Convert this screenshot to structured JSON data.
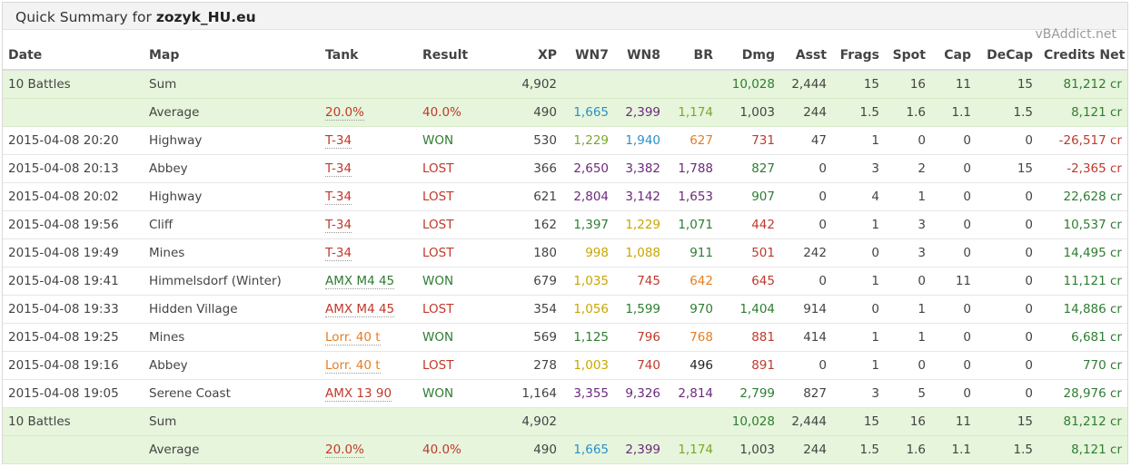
{
  "header": {
    "prefix": "Quick Summary for ",
    "player": "zozyk_HU.eu",
    "brand": "vBAddict.net"
  },
  "colors": {
    "red": "#c0392b",
    "orange": "#e67e22",
    "yellow": "#c9a600",
    "green": "#2e9a2e",
    "lightgreen": "#7aa82a",
    "blue": "#2a8fc9",
    "purple": "#6b2a7a",
    "darkgreen": "#2e7d32",
    "black": "#222222",
    "gray": "#444444",
    "sum_bg": "#e6f5dc"
  },
  "columns": [
    "Date",
    "Map",
    "Tank",
    "Result",
    "XP",
    "WN7",
    "WN8",
    "BR",
    "Dmg",
    "Asst",
    "Frags",
    "Spot",
    "Cap",
    "DeCap",
    "Credits Net"
  ],
  "top_summary": [
    {
      "date": "10 Battles",
      "map": "Sum",
      "tank": "",
      "result": "",
      "xp": "4,902",
      "wn7": "",
      "wn8": "",
      "br": "",
      "dmg": "10,028",
      "asst": "2,444",
      "frags": "15",
      "spot": "16",
      "cap": "11",
      "decap": "15",
      "credits": "81,212 cr"
    },
    {
      "date": "",
      "map": "Average",
      "tank": "20.0%",
      "result": "40.0%",
      "xp": "490",
      "wn7": "1,665",
      "wn8": "2,399",
      "br": "1,174",
      "dmg": "1,003",
      "asst": "244",
      "frags": "1.5",
      "spot": "1.6",
      "cap": "1.1",
      "decap": "1.5",
      "credits": "8,121 cr"
    }
  ],
  "battles": [
    {
      "date": "2015-04-08 20:20",
      "map": "Highway",
      "tank": "T-34",
      "result": "WON",
      "xp": "530",
      "wn7": "1,229",
      "wn8": "1,940",
      "br": "627",
      "dmg": "731",
      "asst": "47",
      "frags": "1",
      "spot": "0",
      "cap": "0",
      "decap": "0",
      "credits": "-26,517 cr"
    },
    {
      "date": "2015-04-08 20:13",
      "map": "Abbey",
      "tank": "T-34",
      "result": "LOST",
      "xp": "366",
      "wn7": "2,650",
      "wn8": "3,382",
      "br": "1,788",
      "dmg": "827",
      "asst": "0",
      "frags": "3",
      "spot": "2",
      "cap": "0",
      "decap": "15",
      "credits": "-2,365 cr"
    },
    {
      "date": "2015-04-08 20:02",
      "map": "Highway",
      "tank": "T-34",
      "result": "LOST",
      "xp": "621",
      "wn7": "2,804",
      "wn8": "3,142",
      "br": "1,653",
      "dmg": "907",
      "asst": "0",
      "frags": "4",
      "spot": "1",
      "cap": "0",
      "decap": "0",
      "credits": "22,628 cr"
    },
    {
      "date": "2015-04-08 19:56",
      "map": "Cliff",
      "tank": "T-34",
      "result": "LOST",
      "xp": "162",
      "wn7": "1,397",
      "wn8": "1,229",
      "br": "1,071",
      "dmg": "442",
      "asst": "0",
      "frags": "1",
      "spot": "3",
      "cap": "0",
      "decap": "0",
      "credits": "10,537 cr"
    },
    {
      "date": "2015-04-08 19:49",
      "map": "Mines",
      "tank": "T-34",
      "result": "LOST",
      "xp": "180",
      "wn7": "998",
      "wn8": "1,088",
      "br": "911",
      "dmg": "501",
      "asst": "242",
      "frags": "0",
      "spot": "3",
      "cap": "0",
      "decap": "0",
      "credits": "14,495 cr"
    },
    {
      "date": "2015-04-08 19:41",
      "map": "Himmelsdorf (Winter)",
      "tank": "AMX M4 45",
      "result": "WON",
      "xp": "679",
      "wn7": "1,035",
      "wn8": "745",
      "br": "642",
      "dmg": "645",
      "asst": "0",
      "frags": "1",
      "spot": "0",
      "cap": "11",
      "decap": "0",
      "credits": "11,121 cr"
    },
    {
      "date": "2015-04-08 19:33",
      "map": "Hidden Village",
      "tank": "AMX M4 45",
      "result": "LOST",
      "xp": "354",
      "wn7": "1,056",
      "wn8": "1,599",
      "br": "970",
      "dmg": "1,404",
      "asst": "914",
      "frags": "0",
      "spot": "1",
      "cap": "0",
      "decap": "0",
      "credits": "14,886 cr"
    },
    {
      "date": "2015-04-08 19:25",
      "map": "Mines",
      "tank": "Lorr. 40 t",
      "result": "WON",
      "xp": "569",
      "wn7": "1,125",
      "wn8": "796",
      "br": "768",
      "dmg": "881",
      "asst": "414",
      "frags": "1",
      "spot": "1",
      "cap": "0",
      "decap": "0",
      "credits": "6,681 cr"
    },
    {
      "date": "2015-04-08 19:16",
      "map": "Abbey",
      "tank": "Lorr. 40 t",
      "result": "LOST",
      "xp": "278",
      "wn7": "1,003",
      "wn8": "740",
      "br": "496",
      "dmg": "891",
      "asst": "0",
      "frags": "1",
      "spot": "0",
      "cap": "0",
      "decap": "0",
      "credits": "770 cr"
    },
    {
      "date": "2015-04-08 19:05",
      "map": "Serene Coast",
      "tank": "AMX 13 90",
      "result": "WON",
      "xp": "1,164",
      "wn7": "3,355",
      "wn8": "9,326",
      "br": "2,814",
      "dmg": "2,799",
      "asst": "827",
      "frags": "3",
      "spot": "5",
      "cap": "0",
      "decap": "0",
      "credits": "28,976 cr"
    }
  ],
  "bottom_summary": [
    {
      "date": "10 Battles",
      "map": "Sum",
      "tank": "",
      "result": "",
      "xp": "4,902",
      "wn7": "",
      "wn8": "",
      "br": "",
      "dmg": "10,028",
      "asst": "2,444",
      "frags": "15",
      "spot": "16",
      "cap": "11",
      "decap": "15",
      "credits": "81,212 cr"
    },
    {
      "date": "",
      "map": "Average",
      "tank": "20.0%",
      "result": "40.0%",
      "xp": "490",
      "wn7": "1,665",
      "wn8": "2,399",
      "br": "1,174",
      "dmg": "1,003",
      "asst": "244",
      "frags": "1.5",
      "spot": "1.6",
      "cap": "1.1",
      "decap": "1.5",
      "credits": "8,121 cr"
    }
  ],
  "cell_colors": {
    "top_summary": [
      {
        "dmg": "darkgreen",
        "credits": "darkgreen"
      },
      {
        "tank": "red",
        "result": "red",
        "wn7": "blue",
        "wn8": "purple",
        "br": "lightgreen",
        "credits": "darkgreen"
      }
    ],
    "battles": [
      {
        "tank": "red",
        "result": "darkgreen",
        "wn7": "lightgreen",
        "wn8": "blue",
        "br": "orange",
        "dmg": "red",
        "credits": "red"
      },
      {
        "tank": "red",
        "result": "red",
        "wn7": "purple",
        "wn8": "purple",
        "br": "purple",
        "dmg": "darkgreen",
        "credits": "red"
      },
      {
        "tank": "red",
        "result": "red",
        "wn7": "purple",
        "wn8": "purple",
        "br": "purple",
        "dmg": "darkgreen",
        "credits": "darkgreen"
      },
      {
        "tank": "red",
        "result": "red",
        "wn7": "darkgreen",
        "wn8": "yellow",
        "br": "darkgreen",
        "dmg": "red",
        "credits": "darkgreen"
      },
      {
        "tank": "red",
        "result": "red",
        "wn7": "yellow",
        "wn8": "yellow",
        "br": "darkgreen",
        "dmg": "red",
        "credits": "darkgreen"
      },
      {
        "tank": "darkgreen",
        "result": "darkgreen",
        "wn7": "yellow",
        "wn8": "red",
        "br": "orange",
        "dmg": "red",
        "credits": "darkgreen"
      },
      {
        "tank": "red",
        "result": "red",
        "wn7": "yellow",
        "wn8": "darkgreen",
        "br": "darkgreen",
        "dmg": "darkgreen",
        "credits": "darkgreen"
      },
      {
        "tank": "orange",
        "result": "darkgreen",
        "wn7": "darkgreen",
        "wn8": "red",
        "br": "orange",
        "dmg": "red",
        "credits": "darkgreen"
      },
      {
        "tank": "orange",
        "result": "red",
        "wn7": "yellow",
        "wn8": "red",
        "br": "black",
        "dmg": "red",
        "credits": "darkgreen"
      },
      {
        "tank": "red",
        "result": "darkgreen",
        "wn7": "purple",
        "wn8": "purple",
        "br": "purple",
        "dmg": "darkgreen",
        "credits": "darkgreen"
      }
    ],
    "bottom_summary": [
      {
        "dmg": "darkgreen",
        "credits": "darkgreen"
      },
      {
        "tank": "red",
        "result": "red",
        "wn7": "blue",
        "wn8": "purple",
        "br": "lightgreen",
        "credits": "darkgreen"
      }
    ]
  }
}
